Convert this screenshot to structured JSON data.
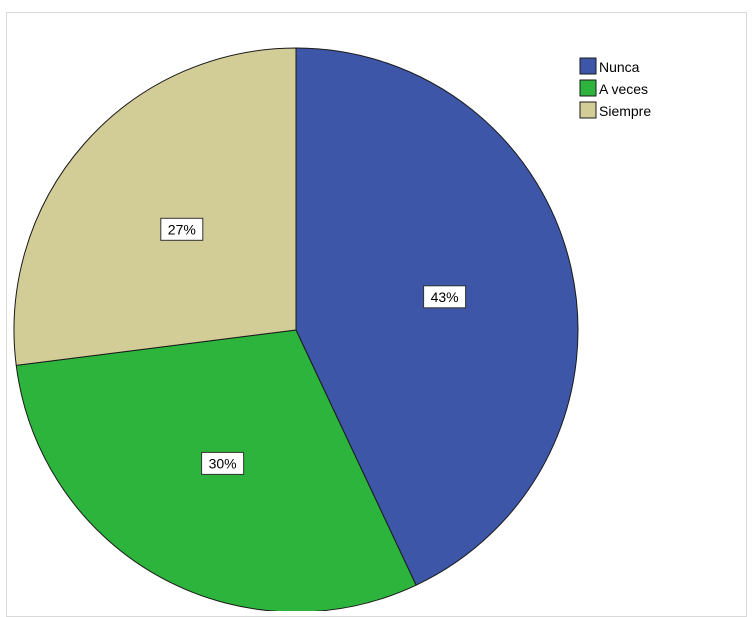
{
  "chart_data": {
    "type": "pie",
    "categories": [
      "Nunca",
      "A veces",
      "Siempre"
    ],
    "values": [
      43,
      30,
      27
    ],
    "labels": [
      "43%",
      "30%",
      "27%"
    ],
    "colors": [
      "#3d56a8",
      "#2db43c",
      "#d2cc97"
    ],
    "start_angle_deg": 0,
    "direction": "clockwise",
    "legend_position": "top-right"
  }
}
